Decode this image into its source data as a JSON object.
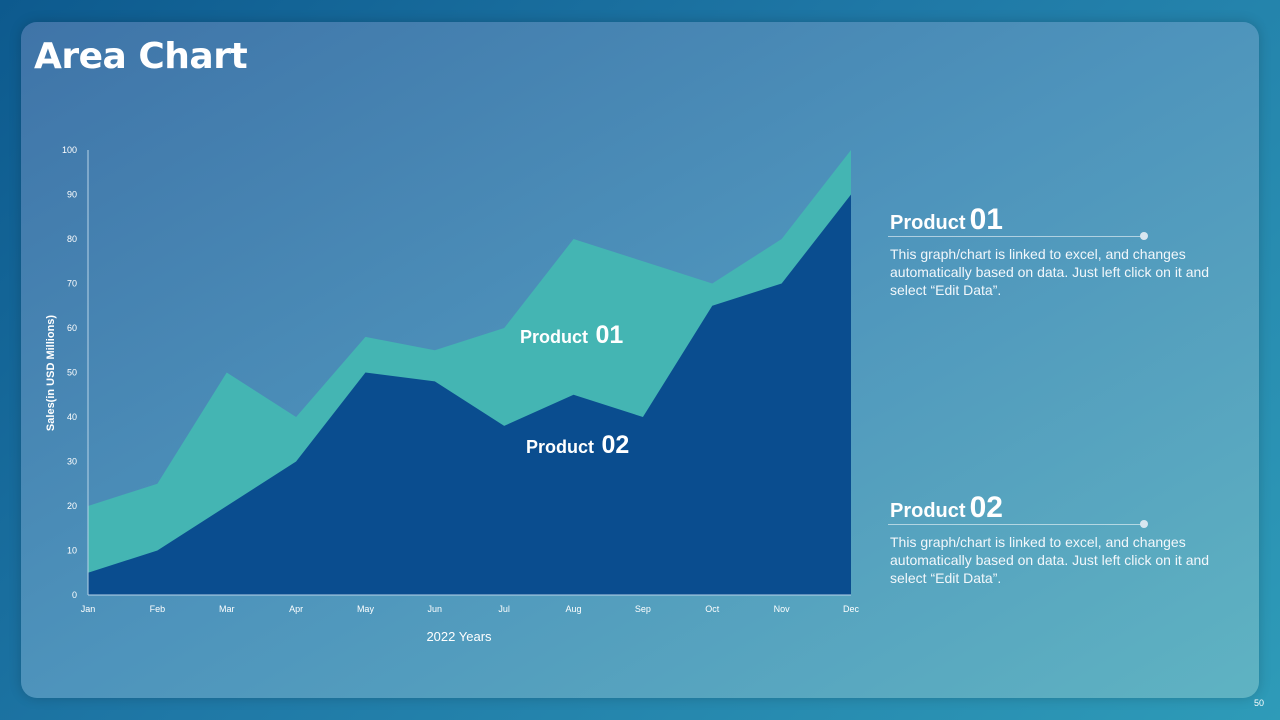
{
  "slide": {
    "title": "Area Chart",
    "page_number": "50"
  },
  "colors": {
    "product01": "#44b5b3",
    "product02": "#0a4d8f",
    "axis": "#b8d4e8"
  },
  "chart_data": {
    "type": "area",
    "categories": [
      "Jan",
      "Feb",
      "Mar",
      "Apr",
      "May",
      "Jun",
      "Jul",
      "Aug",
      "Sep",
      "Oct",
      "Nov",
      "Dec"
    ],
    "series": [
      {
        "name": "Product 01",
        "values": [
          20,
          25,
          50,
          40,
          58,
          55,
          60,
          80,
          75,
          70,
          80,
          100
        ]
      },
      {
        "name": "Product 02",
        "values": [
          5,
          10,
          20,
          30,
          50,
          48,
          38,
          45,
          40,
          65,
          70,
          90
        ]
      }
    ],
    "xlabel": "2022 Years",
    "ylabel": "Sales(in USD Millions)",
    "ylim": [
      0,
      100
    ],
    "yticks": [
      0,
      10,
      20,
      30,
      40,
      50,
      60,
      70,
      80,
      90,
      100
    ],
    "grid": false,
    "annotations": [
      {
        "word": "Product",
        "number": "01"
      },
      {
        "word": "Product",
        "number": "02"
      }
    ]
  },
  "legend": [
    {
      "word": "Product",
      "number": "01",
      "description": "This graph/chart is linked to excel, and changes automatically based on data. Just left click on it and select “Edit Data”."
    },
    {
      "word": "Product",
      "number": "02",
      "description": "This graph/chart is linked to excel, and changes automatically based on data. Just left click on it and select “Edit Data”."
    }
  ]
}
